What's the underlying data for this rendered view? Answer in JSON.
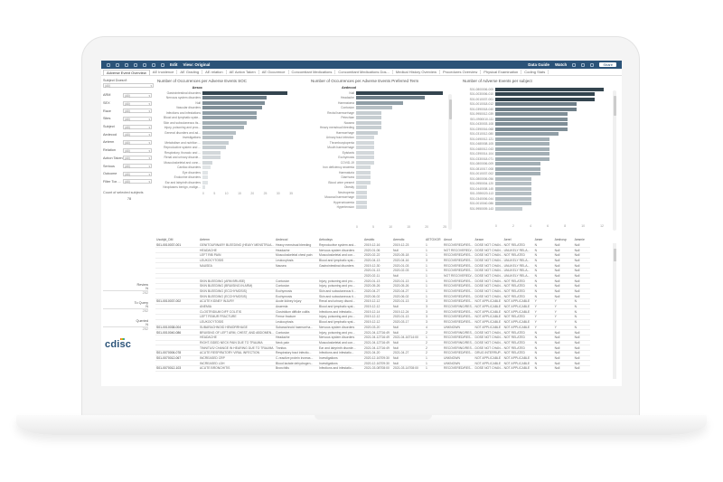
{
  "toolbar": {
    "edit_label": "Edit",
    "view_original_label": "View: Original",
    "data_guide_label": "Data Guide",
    "watch_label": "Watch",
    "share_label": "Share"
  },
  "tabs": [
    {
      "label": "Adverse Event Overview",
      "active": true
    },
    {
      "label": "AE Incidence"
    },
    {
      "label": "AE Grading"
    },
    {
      "label": "AE relation"
    },
    {
      "label": "AE Action Taken"
    },
    {
      "label": "AE Occurence"
    },
    {
      "label": "Concomitant Medications"
    },
    {
      "label": "Concomitant Medications Dos..."
    },
    {
      "label": "Medical History Overview"
    },
    {
      "label": "Procedures Overview"
    },
    {
      "label": "Physical Examination"
    },
    {
      "label": "Coding Stats"
    }
  ],
  "filters": {
    "subject_doesnt_label": "Subject Doesn't",
    "subject_doesnt_value": "(All)",
    "items": [
      {
        "label": "ARM",
        "value": "(All)"
      },
      {
        "label": "SEX",
        "value": "(All)"
      },
      {
        "label": "Race",
        "value": "(All)"
      },
      {
        "label": "Sites",
        "value": "(All)"
      },
      {
        "label": "Subject",
        "value": "(All)"
      },
      {
        "label": "Aedecod",
        "value": "(All)"
      },
      {
        "label": "Aeterm",
        "value": "(All)"
      },
      {
        "label": "Relation",
        "value": "(All)"
      },
      {
        "label": "Action Taken",
        "value": "(All)"
      },
      {
        "label": "Serious",
        "value": "(All)"
      },
      {
        "label": "Outcome",
        "value": "(All)"
      },
      {
        "label": "Filter Tox ...",
        "value": "(All)"
      }
    ],
    "count_label": "Count of selected subjects",
    "count_value": "78"
  },
  "review": {
    "review_label": "Review",
    "review_n": "N",
    "review_count": "252",
    "to_query_label": "To Query",
    "to_query_n": "N",
    "to_query_count": "252",
    "queried_label": "Queried",
    "queried_n": "N",
    "queried_count": "252"
  },
  "logo_text": "cdisc",
  "chart_data": [
    {
      "type": "bar",
      "title": "Number of Occurrences per Adverse Events SOC",
      "ylabel": "Aesoc",
      "categories": [
        "Gastrointestinal disorders",
        "Nervous system disorders",
        "Null",
        "Vascular disorders",
        "Infections and infestations",
        "Blood and lymphatic syste...",
        "Skin and subcutaneous tis...",
        "Injury, poisoning and proc...",
        "General disorders and ad...",
        "Investigations",
        "Metabolism and nutrition ...",
        "Reproductive system and ...",
        "Respiratory, thoracic and ...",
        "Renal and urinary disorde...",
        "Musculoskeletal and conn...",
        "Cardiac disorders",
        "Eye disorders",
        "Endocrine disorders",
        "Ear and labyrinth disorders",
        "Neoplasms benign, malign..."
      ],
      "values": [
        33,
        25,
        24,
        23,
        21,
        21,
        17,
        16,
        13,
        12,
        10,
        9,
        7,
        7,
        4,
        3,
        2,
        2,
        2,
        1
      ],
      "xticks": [
        "0",
        "5",
        "10",
        "15",
        "20",
        "25",
        "30",
        "35"
      ],
      "xlim": [
        0,
        35
      ]
    },
    {
      "type": "bar",
      "title": "Number of Occurrences per Adverse Events Preferred Term",
      "ylabel": "Aedecod",
      "categories": [
        "Null",
        "Headache",
        "Haematoma",
        "Contusion",
        "Rectal haemorrhage",
        "Petechiae",
        "Nausea",
        "Heavy menstrual bleeding",
        "Haemorrhage",
        "Urinary tract infection",
        "Thrombocytopenia",
        "Mouth haemorrhage",
        "Epistaxis",
        "Ecchymosis",
        "COVID-19",
        "Iron deficiency anaemia",
        "Haematuria",
        "Diarrhoea",
        "Blood urine present",
        "Obesity",
        "Neutropenia",
        "Mucosal haemorrhage",
        "Hyperuricaemia",
        "Hypertension"
      ],
      "values": [
        24,
        19,
        13,
        10,
        7,
        7,
        7,
        7,
        6,
        5,
        5,
        5,
        5,
        5,
        5,
        4,
        4,
        4,
        4,
        3,
        3,
        3,
        3,
        3
      ],
      "xticks": [
        "0",
        "5",
        "10",
        "15",
        "20",
        "25"
      ],
      "xlim": [
        0,
        25
      ]
    },
    {
      "type": "bar",
      "title": "Number of Adverse Events per subject",
      "categories": [
        "S01-0800006-005",
        "S01-0030006-010",
        "S01-0010037-001",
        "S01-0010018-012",
        "S01-0390018-040",
        "S01-9950012-039",
        "S01-0900010-111",
        "S01-0430003-108",
        "S01-0390016-068",
        "S01-0310012-080",
        "S01-0490012-121",
        "S01-0480008-105",
        "S01-0480012-043",
        "S01-0390014-104",
        "S01-0330018-071",
        "S01-0800006-009",
        "S01-0810017-008",
        "S01-0010037-002",
        "S01-0800006-056",
        "S01-0950004-120",
        "S01-0440008-145",
        "S01-0390020-113",
        "S01-0340006-044",
        "S01-0010040-086",
        "S01-9950009-143"
      ],
      "values": [
        12,
        11,
        11,
        9,
        9,
        8,
        8,
        8,
        8,
        7,
        6,
        6,
        6,
        6,
        6,
        5,
        5,
        5,
        4,
        4,
        4,
        4,
        4,
        4,
        3
      ],
      "xticks": [
        "0",
        "2",
        "4",
        "6",
        "8",
        "10",
        "12"
      ],
      "xlim": [
        0,
        12
      ]
    }
  ],
  "table": {
    "columns": [
      "Usubjid_DM",
      "Aeterm",
      "Aedecod",
      "Aebodsys",
      "Aestdtc",
      "Aeendtc",
      "AETOXGR",
      "Aeout",
      "Aeacn",
      "Aerel",
      "Aeser",
      "Aeshosp",
      "Aesmie"
    ],
    "rows": [
      [
        "S01-0010037-001",
        "GENITOURINARY BLEEDING (HEAVY MENSTRUA...",
        "Heavy menstrual bleeding",
        "Reproductive system and...",
        "2019-12-16",
        "2019-12-23",
        "1",
        "RECOVERED/RES...",
        "DOSE NOT CHAN...",
        "NOT RELATED",
        "N",
        "Null",
        "Null"
      ],
      [
        "",
        "HEADACHE",
        "Headache",
        "Nervous system disorders",
        "2020-01-06",
        "Null",
        "1",
        "NOT RECOVERED/...",
        "DOSE NOT CHAN...",
        "UNLIKELY RELA...",
        "N",
        "Null",
        "Null"
      ],
      [
        "",
        "LEFT RIB PAIN",
        "Musculoskeletal chest pain",
        "Musculoskeletal and con...",
        "2020-02-22",
        "2020-05-18",
        "1",
        "RECOVERED/RES...",
        "DOSE NOT CHAN...",
        "NOT RELATED",
        "N",
        "Null",
        "Null"
      ],
      [
        "",
        "LEUKOCYTOSIS",
        "Leukocytosis",
        "Blood and lymphatic syst...",
        "2020-04-13",
        "2020-04-16",
        "3",
        "RECOVERED/RES...",
        "DOSE NOT CHAN...",
        "UNLIKELY RELA...",
        "N",
        "Null",
        "Null"
      ],
      [
        "",
        "NAUSEA",
        "Nausea",
        "Gastrointestinal disorders",
        "2019-12-30",
        "2020-01-03",
        "1",
        "RECOVERED/RES...",
        "DOSE NOT CHAN...",
        "UNLIKELY RELA...",
        "N",
        "Null",
        "Null"
      ],
      [
        "",
        "",
        "",
        "",
        "2020-01-13",
        "2020-02-03",
        "1",
        "RECOVERED/RES...",
        "DOSE NOT CHAN...",
        "UNLIKELY RELA...",
        "N",
        "Null",
        "Null"
      ],
      [
        "",
        "",
        "",
        "",
        "2020-02-11",
        "Null",
        "1",
        "NOT RECOVERED/...",
        "DOSE NOT CHAN...",
        "UNLIKELY RELA...",
        "N",
        "Null",
        "Null"
      ],
      [
        "",
        "SKIN BLEEDING (ARM BRUISE)",
        "Contusion",
        "Injury, poisoning and pro...",
        "2020-01-13",
        "2020-01-13",
        "1",
        "RECOVERED/RES...",
        "DOSE NOT CHAN...",
        "NOT RELATED",
        "N",
        "Null",
        "Null"
      ],
      [
        "",
        "SKIN BLEEDING (BRUISING IN ARM)",
        "Contusion",
        "Injury, poisoning and pro...",
        "2020-05-26",
        "2020-05-26",
        "1",
        "RECOVERED/RES...",
        "DOSE NOT CHAN...",
        "NOT RELATED",
        "N",
        "Null",
        "Null"
      ],
      [
        "",
        "SKIN BLEEDING (ECCHYMOSIS)",
        "Ecchymosis",
        "Skin and subcutaneous ti...",
        "2020-04-27",
        "2020-04-27",
        "1",
        "RECOVERED/RES...",
        "DOSE NOT CHAN...",
        "NOT RELATED",
        "N",
        "Null",
        "Null"
      ],
      [
        "",
        "SKIN BLEEDING (ECCHYMOSIS)",
        "Ecchymosis",
        "Skin and subcutaneous ti...",
        "2020-06-02",
        "2020-06-02",
        "1",
        "RECOVERED/RES...",
        "DOSE NOT CHAN...",
        "NOT RELATED",
        "N",
        "Null",
        "Null"
      ],
      [
        "S01-0010037-002",
        "ACUTE KIDNEY INJURY",
        "Acute kidney injury",
        "Renal and urinary disord...",
        "2019-12-12",
        "2020-01-13",
        "3",
        "RECOVERED/RES...",
        "NOT APPLICABLE",
        "NOT APPLICABLE",
        "Y",
        "Y",
        "N"
      ],
      [
        "",
        "ANEMIA",
        "Anaemia",
        "Blood and lymphatic syst...",
        "2019-12-12",
        "Null",
        "3",
        "RECOVERING/RES...",
        "NOT APPLICABLE",
        "NOT APPLICABLE",
        "Y",
        "Y",
        "N"
      ],
      [
        "",
        "CLOSTRIDIUM DIFF COLITIS",
        "Clostridium difficile colitis",
        "Infections and infestatio...",
        "2019-12-14",
        "2019-12-24",
        "3",
        "RECOVERED/RES...",
        "NOT APPLICABLE",
        "NOT APPLICABLE",
        "Y",
        "Y",
        "N"
      ],
      [
        "",
        "LEFT FEMUR FRACTURE",
        "Femur fracture",
        "Injury, poisoning and pro...",
        "2019-12-12",
        "2020-01-13",
        "3",
        "RECOVERED/RES...",
        "NOT APPLICABLE",
        "NOT RELATED",
        "Y",
        "Y",
        "N"
      ],
      [
        "",
        "LEUKOCYTOSIS",
        "Leukocytosis",
        "Blood and lymphatic syst...",
        "2019-12-12",
        "2020-03-17",
        "3",
        "RECOVERED/RES...",
        "NOT APPLICABLE",
        "NOT APPLICABLE",
        "Y",
        "Y",
        "N"
      ],
      [
        "S01-0010038-004",
        "SUBARACHNOID HEMORRHAGE",
        "Subarachnoid haemorrha...",
        "Nervous system disorders",
        "2020-03-20",
        "Null",
        "4",
        "UNKNOWN",
        "NOT APPLICABLE",
        "NOT APPLICABLE",
        "Y",
        "Y",
        "N"
      ],
      [
        "S01-0010040-086",
        "BRUISING OF LEFT ARM, CHEST, AND ABDOMEN...",
        "Contusion",
        "Injury, poisoning and pro...",
        "2021-04-12T16:49",
        "Null",
        "2",
        "RECOVERING/RES...",
        "DOSE NOT CHAN...",
        "NOT RELATED",
        "N",
        "Null",
        "Null"
      ],
      [
        "",
        "HEADACHE",
        "Headache",
        "Nervous system disorders",
        "2021-04-12T16:49",
        "2021-04-16T14:00",
        "1",
        "RECOVERED/RES...",
        "DOSE NOT CHAN...",
        "NOT RELATED",
        "N",
        "Null",
        "Null"
      ],
      [
        "",
        "RIGHT-SIDED NECK PAIN DUE TO TRAUMA",
        "Neck pain",
        "Musculoskeletal and con...",
        "2021-04-12T16:49",
        "Null",
        "2",
        "RECOVERING/RES...",
        "DOSE NOT CHAN...",
        "NOT RELATED",
        "N",
        "Null",
        "Null"
      ],
      [
        "",
        "TINNITUS/ CHANGE IN HEARING DUE TO TRAUMA",
        "Tinnitus",
        "Ear and labyrinth disorde...",
        "2021-04-12T16:49",
        "Null",
        "2",
        "RECOVERING/RES...",
        "DOSE NOT CHAN...",
        "NOT RELATED",
        "N",
        "Null",
        "Null"
      ],
      [
        "S01-0070006-078",
        "ACUTE RESPIRATORY VIRAL INFECTION",
        "Respiratory tract infectio...",
        "Infections and infestatio...",
        "2021-04-20",
        "2021-04-27",
        "2",
        "RECOVERED/RES...",
        "DRUG INTERRUP...",
        "NOT RELATED",
        "N",
        "Null",
        "Null"
      ],
      [
        "S01-0070012-067",
        "INCREASED CRP",
        "C-reactive protein increas...",
        "Investigations",
        "2020-12-16T09:30",
        "Null",
        "1",
        "UNKNOWN",
        "NOT APPLICABLE",
        "NOT APPLICABLE",
        "N",
        "Null",
        "Null"
      ],
      [
        "",
        "INCREASED LDH",
        "Blood lactate dehydrogen...",
        "Investigations",
        "2020-12-16T09:30",
        "Null",
        "1",
        "UNKNOWN",
        "NOT APPLICABLE",
        "NOT APPLICABLE",
        "N",
        "Null",
        "Null"
      ],
      [
        "S01-0070012-103",
        "ACUTE BRONCHITIS",
        "Bronchitis",
        "Infections and infestatio...",
        "2021-03-08T08:00",
        "2021-03-14T08:00",
        "1",
        "RECOVERED/RES...",
        "DOSE NOT CHAN...",
        "NOT APPLICABLE",
        "N",
        "Null",
        "Null"
      ]
    ]
  },
  "colors": {
    "toolbar_bg": "#2b5378",
    "bar_dark": "#34454f",
    "bar_light": "#e3e6e8",
    "logo": "#2b5378"
  }
}
